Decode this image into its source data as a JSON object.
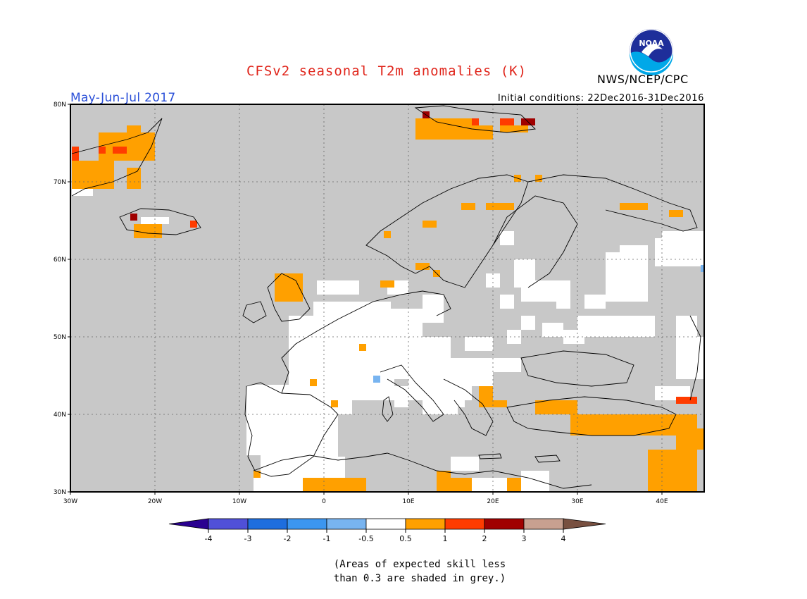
{
  "header": {
    "title": "CFSv2 seasonal T2m anomalies (K)",
    "period": "May-Jun-Jul 2017",
    "initial_conditions": "Initial conditions: 22Dec2016-31Dec2016",
    "organization": "NWS/NCEP/CPC",
    "logo_text": "NOAA"
  },
  "map": {
    "lon_range": [
      -30,
      45
    ],
    "lat_range": [
      30,
      80
    ],
    "lon_ticks": [
      "30W",
      "20W",
      "10W",
      "0",
      "10E",
      "20E",
      "30E",
      "40E"
    ],
    "lat_ticks": [
      "80N",
      "70N",
      "60N",
      "50N",
      "40N",
      "30N"
    ],
    "grid": true,
    "colors": {
      "skill_mask": "#c8c8c8",
      "neutral": "#ffffff",
      "warm_05_1": "#ffa000",
      "warm_1_2": "#ff3c00",
      "warm_2_3": "#a00000",
      "cool_m05_m1": "#78b4f0",
      "border": "#000000"
    }
  },
  "colorbar": {
    "tick_labels": [
      "-4",
      "-3",
      "-2",
      "-1",
      "-0.5",
      "0.5",
      "1",
      "2",
      "3",
      "4"
    ],
    "colors": [
      "#2a0090",
      "#5050d8",
      "#1e6ede",
      "#3c96f0",
      "#78b4f0",
      "#ffffff",
      "#ffa000",
      "#ff3c00",
      "#a00000",
      "#c8a090",
      "#785040"
    ]
  },
  "footnote": {
    "line1": "(Areas of expected skill less",
    "line2": "than 0.3 are shaded in grey.)"
  }
}
